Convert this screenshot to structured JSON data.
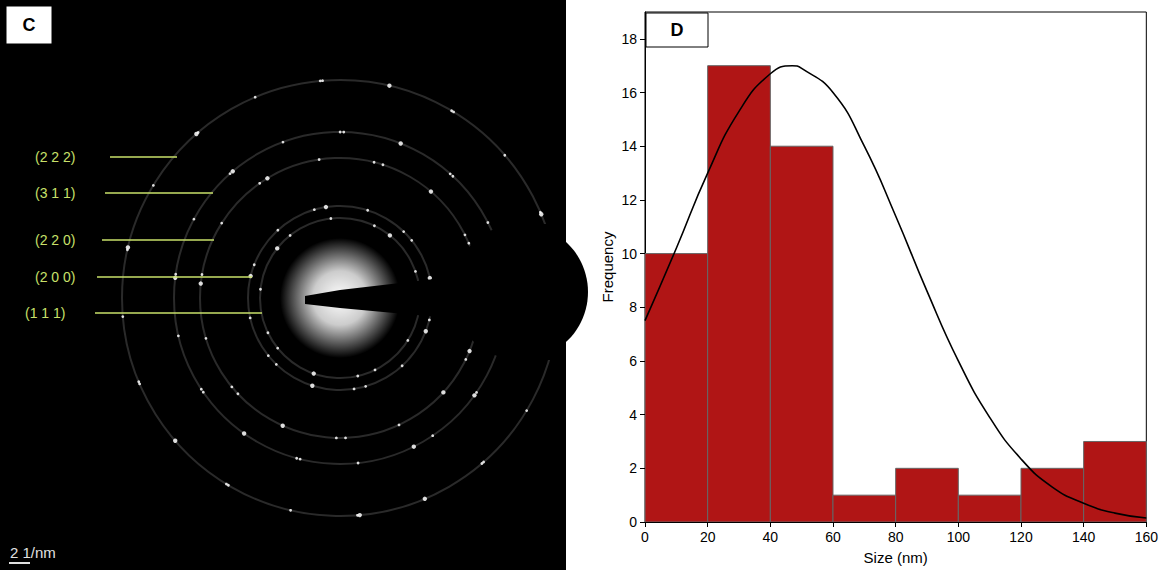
{
  "image_panel": {
    "label": "C",
    "ring_labels": [
      "(2 2 2)",
      "(3 1 1)",
      "(2 2 0)",
      "(2 0 0)",
      "(1 1 1)"
    ],
    "scale_bar": "2 1/nm"
  },
  "chart_data": {
    "label": "D",
    "type": "histogram",
    "x_label": "Size (nm)",
    "y_label": "Frequency",
    "bins": [
      0,
      20,
      40,
      60,
      80,
      100,
      120,
      140,
      160
    ],
    "counts": [
      10,
      17,
      14,
      1,
      2,
      1,
      2,
      3
    ],
    "color": "#b01515",
    "fit": {
      "type": "line",
      "color": "#000000",
      "x": [
        0,
        10,
        20,
        30,
        40,
        47,
        50,
        60,
        70,
        80,
        90,
        100,
        110,
        120,
        130,
        140,
        150,
        160
      ],
      "values": [
        7.5,
        10.2,
        13.0,
        15.3,
        16.7,
        17.0,
        16.9,
        16.0,
        14.0,
        11.4,
        8.6,
        6.0,
        3.9,
        2.35,
        1.3,
        0.7,
        0.33,
        0.15
      ]
    },
    "xlim": [
      0,
      160
    ],
    "xticks": [
      0,
      20,
      40,
      60,
      80,
      100,
      120,
      140,
      160
    ],
    "ylim": [
      0,
      19
    ],
    "yticks": [
      0,
      2,
      4,
      6,
      8,
      10,
      12,
      14,
      16,
      18
    ],
    "grid": false
  }
}
